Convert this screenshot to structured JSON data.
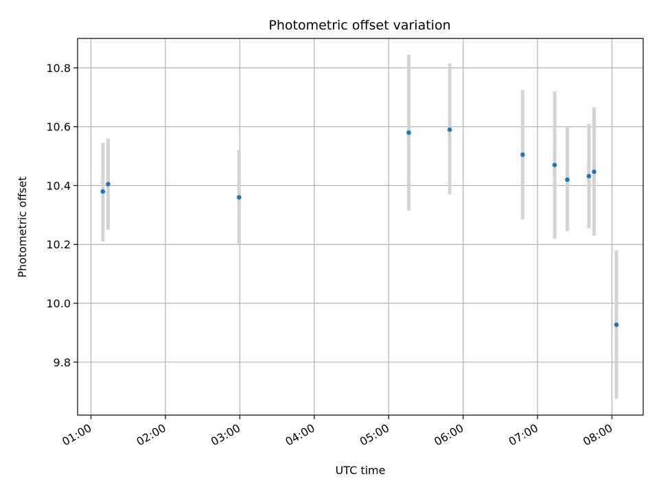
{
  "chart_data": {
    "type": "scatter",
    "title": "Photometric offset variation",
    "xlabel": "UTC time",
    "ylabel": "Photometric offset",
    "x_ticks": [
      "01:00",
      "02:00",
      "03:00",
      "04:00",
      "05:00",
      "06:00",
      "07:00",
      "08:00"
    ],
    "x_tick_hours": [
      1,
      2,
      3,
      4,
      5,
      6,
      7,
      8
    ],
    "xlim": [
      0.82,
      8.42
    ],
    "y_ticks": [
      "9.8",
      "10.0",
      "10.2",
      "10.4",
      "10.6",
      "10.8"
    ],
    "y_tick_values": [
      9.8,
      10.0,
      10.2,
      10.4,
      10.6,
      10.8
    ],
    "ylim": [
      9.62,
      10.9
    ],
    "grid": true,
    "colors": {
      "marker": "#1f77b4",
      "errorbar": "#d3d3d3",
      "grid": "#b0b0b0"
    },
    "points": [
      {
        "x": 1.16,
        "y": 10.38,
        "ymin": 10.21,
        "ymax": 10.545
      },
      {
        "x": 1.23,
        "y": 10.405,
        "ymin": 10.25,
        "ymax": 10.56
      },
      {
        "x": 2.99,
        "y": 10.36,
        "ymin": 10.2,
        "ymax": 10.52
      },
      {
        "x": 5.27,
        "y": 10.58,
        "ymin": 10.315,
        "ymax": 10.845
      },
      {
        "x": 5.82,
        "y": 10.59,
        "ymin": 10.37,
        "ymax": 10.815
      },
      {
        "x": 6.8,
        "y": 10.505,
        "ymin": 10.285,
        "ymax": 10.725
      },
      {
        "x": 7.23,
        "y": 10.47,
        "ymin": 10.22,
        "ymax": 10.72
      },
      {
        "x": 7.4,
        "y": 10.42,
        "ymin": 10.245,
        "ymax": 10.6
      },
      {
        "x": 7.69,
        "y": 10.432,
        "ymin": 10.255,
        "ymax": 10.61
      },
      {
        "x": 7.76,
        "y": 10.447,
        "ymin": 10.23,
        "ymax": 10.665
      },
      {
        "x": 8.06,
        "y": 9.927,
        "ymin": 9.675,
        "ymax": 10.18
      }
    ]
  }
}
